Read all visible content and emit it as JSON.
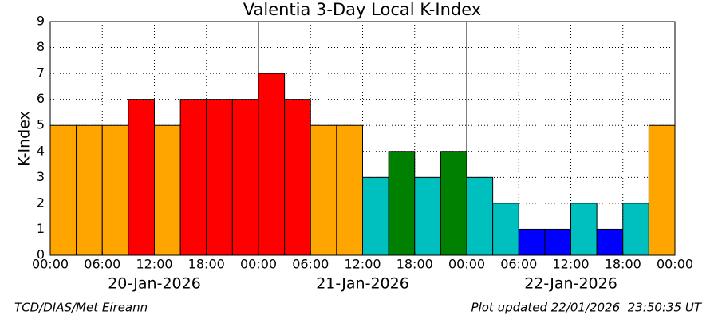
{
  "chart_data": {
    "type": "bar",
    "title": "Valentia 3-Day Local K-Index",
    "ylabel": "K-Index",
    "values": [
      5,
      5,
      5,
      6,
      5,
      6,
      6,
      6,
      7,
      6,
      5,
      5,
      3,
      4,
      3,
      4,
      3,
      2,
      1,
      1,
      2,
      1,
      2,
      5
    ],
    "colors": [
      "#ffa500",
      "#ffa500",
      "#ffa500",
      "#ff0000",
      "#ffa500",
      "#ff0000",
      "#ff0000",
      "#ff0000",
      "#ff0000",
      "#ff0000",
      "#ffa500",
      "#ffa500",
      "#00bfbf",
      "#008000",
      "#00bfbf",
      "#008000",
      "#00bfbf",
      "#00bfbf",
      "#0000ff",
      "#0000ff",
      "#00bfbf",
      "#0000ff",
      "#00bfbf",
      "#ffa500"
    ],
    "xtick_labels": [
      "00:00",
      "06:00",
      "12:00",
      "18:00",
      "00:00",
      "06:00",
      "12:00",
      "18:00",
      "00:00",
      "06:00",
      "12:00",
      "18:00",
      "00:00"
    ],
    "date_labels": [
      "20-Jan-2026",
      "21-Jan-2026",
      "22-Jan-2026"
    ],
    "ylim": [
      0,
      9
    ],
    "yticks": [
      0,
      1,
      2,
      3,
      4,
      5,
      6,
      7,
      8,
      9
    ],
    "grid": true,
    "credit": "TCD/DIAS/Met Eireann",
    "updated": "Plot updated 22/01/2026  23:50:35 UT"
  }
}
